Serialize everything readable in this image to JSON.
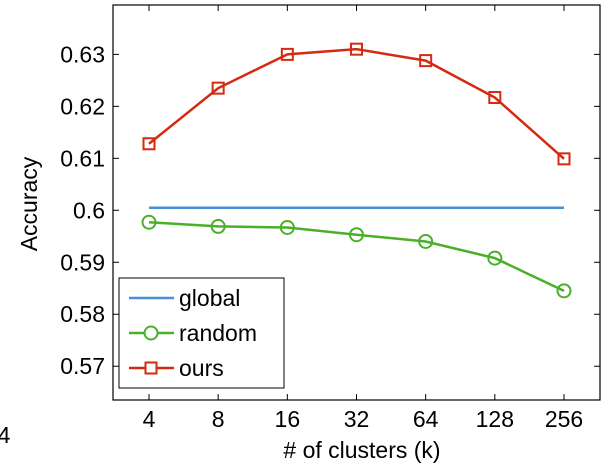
{
  "chart_data": {
    "type": "line",
    "title": "",
    "xlabel": "# of clusters (k)",
    "ylabel": "Accuracy",
    "x": [
      "4",
      "8",
      "16",
      "32",
      "64",
      "128",
      "256"
    ],
    "y_ticks": [
      "0.57",
      "0.58",
      "0.59",
      "0.6",
      "0.61",
      "0.62",
      "0.63"
    ],
    "ylim": [
      0.5635,
      0.6395
    ],
    "grid": false,
    "legend_position": "bottom-left",
    "series": [
      {
        "name": "global",
        "color": "#4a90d9",
        "marker": "none",
        "values": [
          0.6005,
          0.6005,
          0.6005,
          0.6005,
          0.6005,
          0.6005,
          0.6005
        ]
      },
      {
        "name": "random",
        "color": "#4caf2a",
        "marker": "circle",
        "values": [
          0.5977,
          0.5969,
          0.5967,
          0.5953,
          0.594,
          0.5908,
          0.5845
        ]
      },
      {
        "name": "ours",
        "color": "#d52a12",
        "marker": "square",
        "values": [
          0.6128,
          0.6235,
          0.63,
          0.631,
          0.6288,
          0.6217,
          0.6099
        ]
      }
    ]
  },
  "stray_tick_label": "4"
}
